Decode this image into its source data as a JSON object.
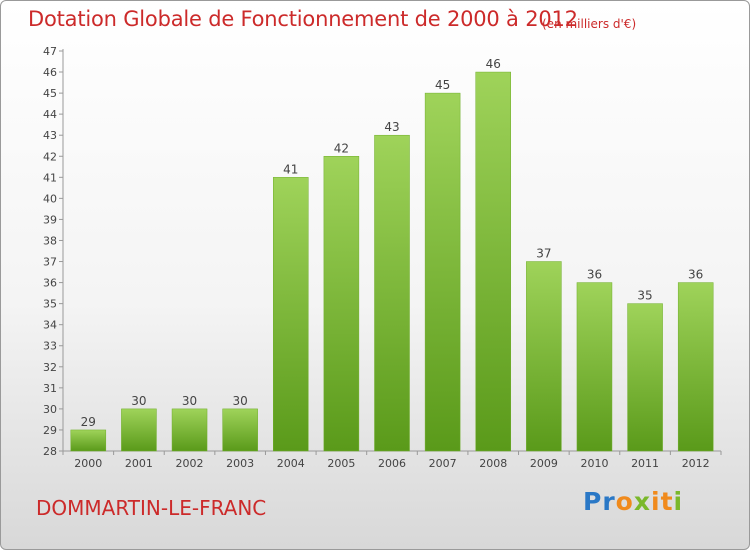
{
  "header": {
    "title": "Dotation Globale de Fonctionnement de 2000 à 2012",
    "unit": "(en milliers d'€)"
  },
  "footer": {
    "commune": "DOMMARTIN-LE-FRANC",
    "brand_letters": [
      "P",
      "r",
      "o",
      "x",
      "i",
      "t",
      "i"
    ],
    "brand_colors": [
      "#2a78c6",
      "#2a78c6",
      "#f08a1c",
      "#7ab82a",
      "#f08a1c",
      "#f08a1c",
      "#7ab82a"
    ]
  },
  "colors": {
    "accent_text": "#cc2a2a",
    "bar_top": "#9fd35a",
    "bar_bottom": "#5a9a1a",
    "axis": "#999999",
    "grid_tick_text": "#444444"
  },
  "chart_data": {
    "type": "bar",
    "categories": [
      "2000",
      "2001",
      "2002",
      "2003",
      "2004",
      "2005",
      "2006",
      "2007",
      "2008",
      "2009",
      "2010",
      "2011",
      "2012"
    ],
    "values": [
      29,
      30,
      30,
      30,
      41,
      42,
      43,
      45,
      46,
      37,
      36,
      35,
      36
    ],
    "title": "Dotation Globale de Fonctionnement de 2000 à 2012",
    "ylabel": "",
    "xlabel": "",
    "ylim": [
      28,
      47
    ],
    "yticks": [
      28,
      29,
      30,
      31,
      32,
      33,
      34,
      35,
      36,
      37,
      38,
      39,
      40,
      41,
      42,
      43,
      44,
      45,
      46,
      47
    ],
    "grid": false,
    "data_labels": true
  }
}
